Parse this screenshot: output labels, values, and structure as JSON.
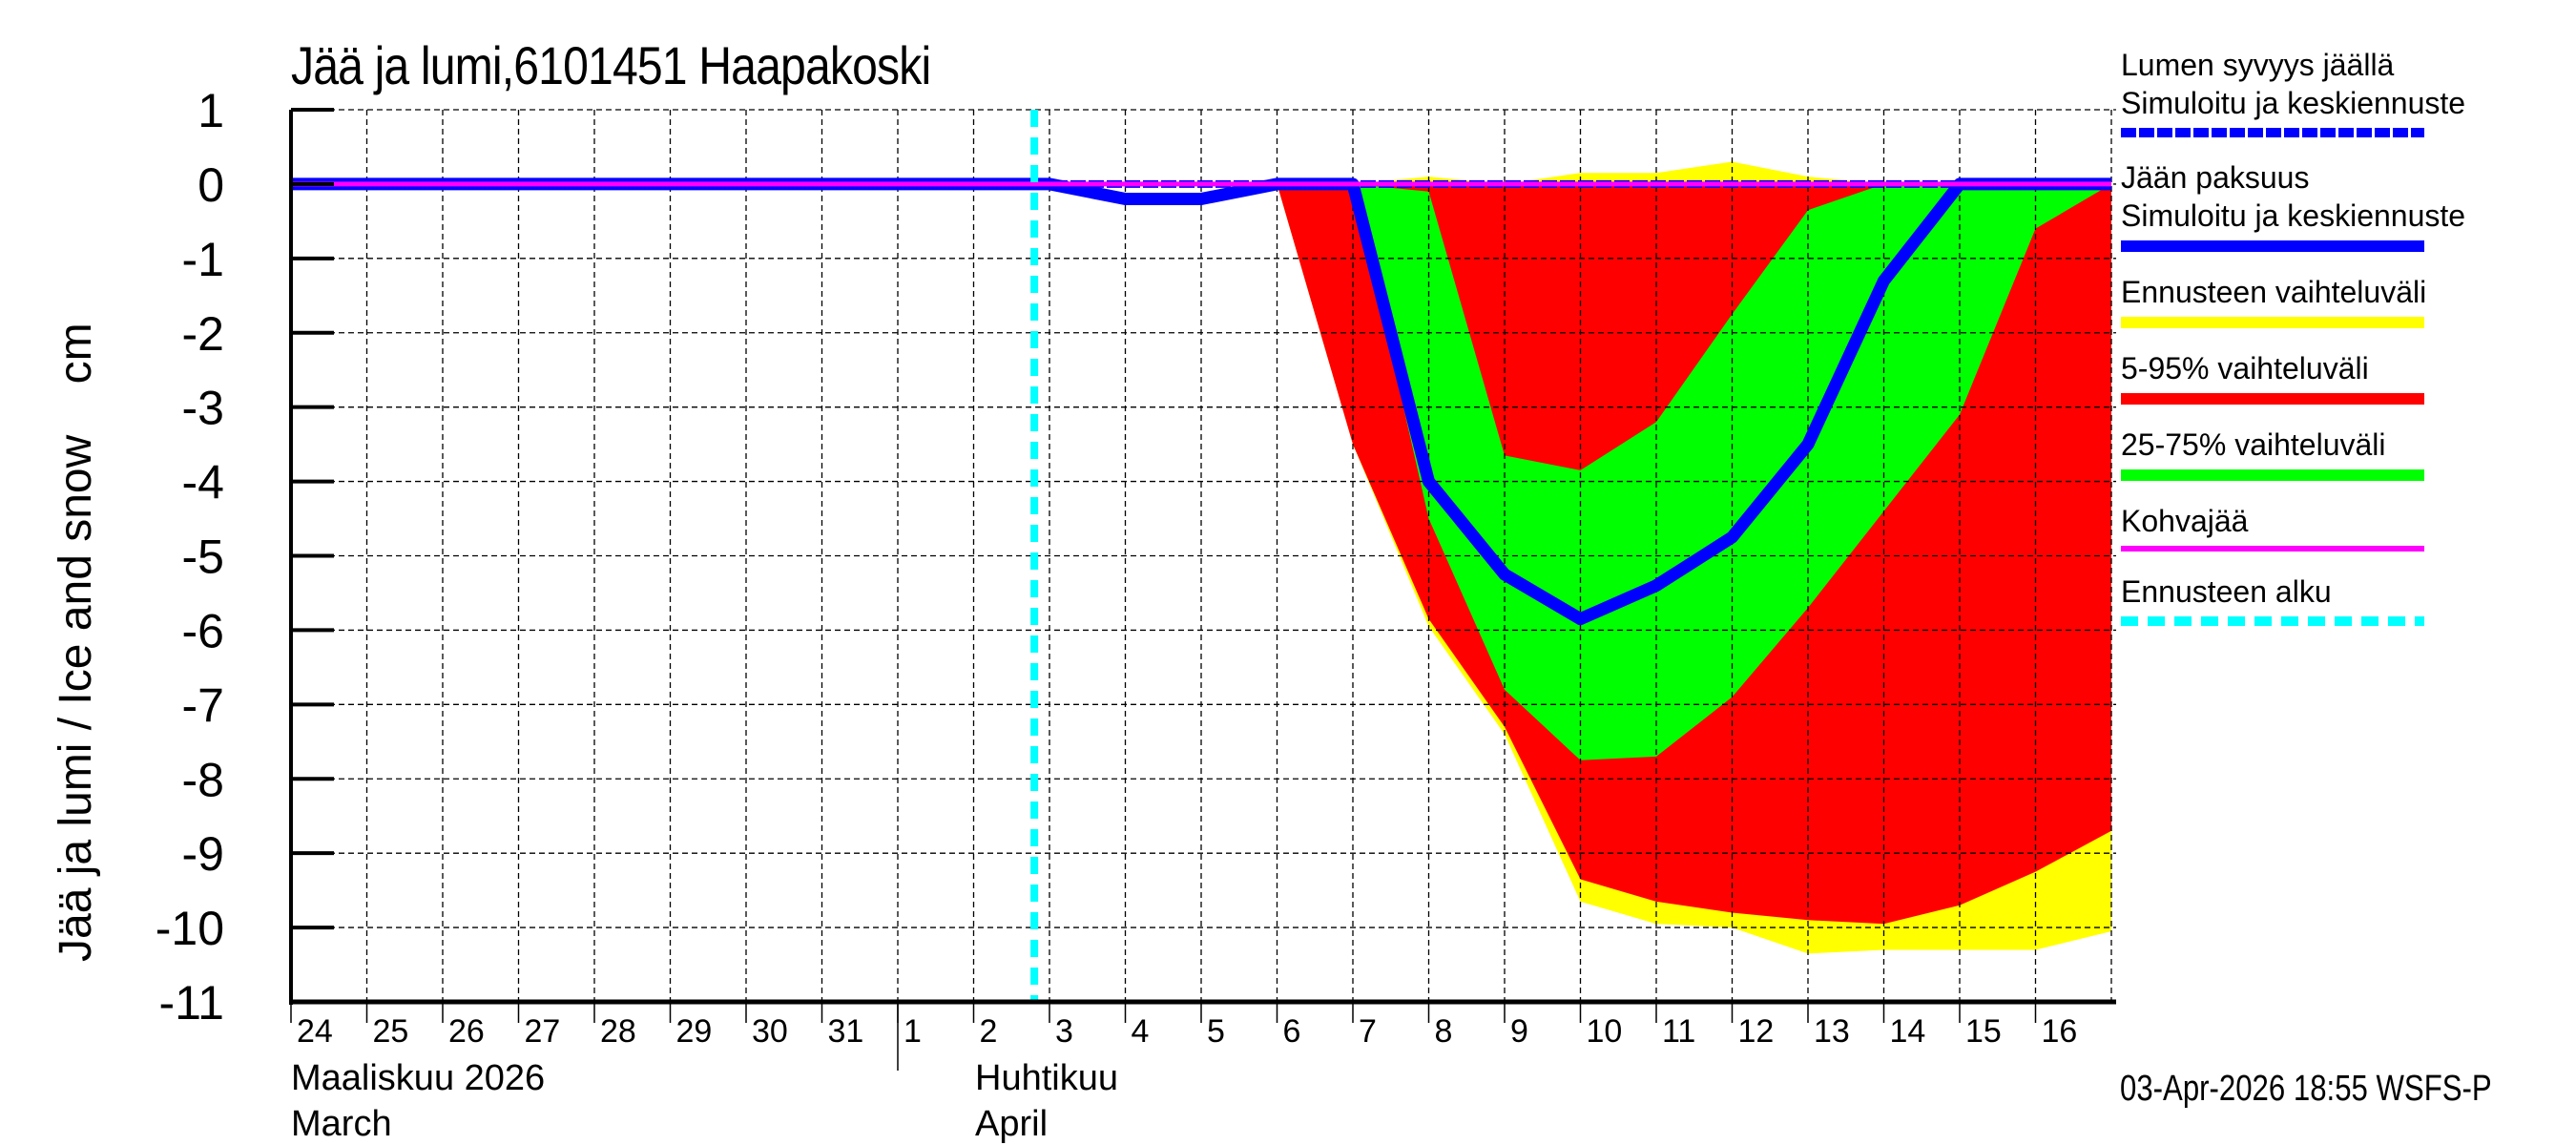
{
  "title": "Jää ja lumi,6101451 Haapakoski",
  "y_axis_label": "Jää ja lumi / Ice and snow    cm",
  "timestamp": "03-Apr-2026 18:55 WSFS-P",
  "x_axis": {
    "day_labels": [
      "24",
      "25",
      "26",
      "27",
      "28",
      "29",
      "30",
      "31",
      "1",
      "2",
      "3",
      "4",
      "5",
      "6",
      "7",
      "8",
      "9",
      "10",
      "11",
      "12",
      "13",
      "14",
      "15",
      "16"
    ],
    "month_labels": [
      {
        "fi": "Maaliskuu 2026",
        "en": "March"
      },
      {
        "fi": "Huhtikuu",
        "en": "April"
      }
    ]
  },
  "y_axis": {
    "ticks": [
      "1",
      "0",
      "-1",
      "-2",
      "-3",
      "-4",
      "-5",
      "-6",
      "-7",
      "-8",
      "-9",
      "-10",
      "-11"
    ]
  },
  "legend": {
    "items": [
      {
        "label": "Lumen syvyys jäällä",
        "sublabel": "Simuloitu ja keskiennuste",
        "color": "#0000ff",
        "style": "dotted"
      },
      {
        "label": "Jään paksuus",
        "sublabel": "Simuloitu ja keskiennuste",
        "color": "#0000ff",
        "style": "solid"
      },
      {
        "label": "Ennusteen vaihteluväli",
        "color": "#ffff00",
        "style": "band"
      },
      {
        "label": "5-95% vaihteluväli",
        "color": "#ff0000",
        "style": "band"
      },
      {
        "label": "25-75% vaihteluväli",
        "color": "#00ff00",
        "style": "band"
      },
      {
        "label": "Kohvajää",
        "color": "#ff00ff",
        "style": "thin"
      },
      {
        "label": "Ennusteen alku",
        "color": "#00ffff",
        "style": "dashed"
      }
    ]
  },
  "chart_data": {
    "type": "area",
    "title": "Jää ja lumi,6101451 Haapakoski",
    "xlabel": "Maaliskuu 2026 / March — Huhtikuu / April",
    "ylabel": "Jää ja lumi / Ice and snow cm",
    "ylim": [
      -11,
      1
    ],
    "x_start": "2026-03-24",
    "x_end": "2026-04-17",
    "grid": true,
    "forecast_start_x": 9.8,
    "categories": [
      "Mar 24",
      "Mar 25",
      "Mar 26",
      "Mar 27",
      "Mar 28",
      "Mar 29",
      "Mar 30",
      "Mar 31",
      "Apr 1",
      "Apr 2",
      "Apr 3",
      "Apr 4",
      "Apr 5",
      "Apr 6",
      "Apr 7",
      "Apr 8",
      "Apr 9",
      "Apr 10",
      "Apr 11",
      "Apr 12",
      "Apr 13",
      "Apr 14",
      "Apr 15",
      "Apr 16",
      "Apr 17"
    ],
    "series": [
      {
        "name": "Jään paksuus (Simuloitu ja keskiennuste)",
        "color": "#0000ff",
        "values": [
          0,
          0,
          0,
          0,
          0,
          0,
          0,
          0,
          0,
          0,
          0,
          -0.2,
          -0.2,
          0,
          0,
          -4.0,
          -5.25,
          -5.85,
          -5.4,
          -4.75,
          -3.5,
          -1.3,
          0,
          0,
          0
        ]
      },
      {
        "name": "Lumen syvyys jäällä (Simuloitu ja keskiennuste)",
        "color": "#0000ff",
        "values": [
          0,
          0,
          0,
          0,
          0,
          0,
          0,
          0,
          0,
          0,
          0,
          0,
          0,
          0,
          0,
          0,
          0,
          0,
          0,
          0,
          0,
          0,
          0,
          0,
          0
        ]
      },
      {
        "name": "Kohvajää",
        "color": "#ff00ff",
        "values": [
          0,
          0,
          0,
          0,
          0,
          0,
          0,
          0,
          0,
          0,
          0,
          0,
          0,
          0,
          0,
          0,
          0,
          0,
          0,
          0,
          0,
          0,
          0,
          0,
          0
        ]
      },
      {
        "name": "Ennusteen vaihteluväli (upper)",
        "color": "#ffff00",
        "values": [
          0,
          0,
          0,
          0,
          0,
          0,
          0,
          0,
          0,
          0,
          0,
          0,
          0,
          0,
          0,
          0.1,
          0,
          0.15,
          0.15,
          0.3,
          0.1,
          0,
          0,
          0,
          0
        ]
      },
      {
        "name": "Ennusteen vaihteluväli (lower)",
        "color": "#ffff00",
        "values": [
          0,
          0,
          0,
          0,
          0,
          0,
          0,
          0,
          0,
          0,
          0,
          0,
          0,
          0,
          -3.5,
          -5.95,
          -7.4,
          -9.65,
          -9.95,
          -10.0,
          -10.35,
          -10.3,
          -10.3,
          -10.3,
          -10.05
        ]
      },
      {
        "name": "5-95% vaihteluväli (upper)",
        "color": "#ff0000",
        "values": [
          0,
          0,
          0,
          0,
          0,
          0,
          0,
          0,
          0,
          0,
          0,
          0,
          0,
          0,
          0,
          0,
          0,
          0,
          0,
          0,
          0,
          0,
          0,
          0,
          0
        ]
      },
      {
        "name": "5-95% vaihteluväli (lower)",
        "color": "#ff0000",
        "values": [
          0,
          0,
          0,
          0,
          0,
          0,
          0,
          0,
          0,
          0,
          0,
          0,
          0,
          0,
          -3.5,
          -5.85,
          -7.3,
          -9.35,
          -9.65,
          -9.8,
          -9.9,
          -9.95,
          -9.7,
          -9.25,
          -8.7
        ]
      },
      {
        "name": "25-75% vaihteluväli (upper)",
        "color": "#00ff00",
        "values": [
          0,
          0,
          0,
          0,
          0,
          0,
          0,
          0,
          0,
          0,
          0,
          0,
          0,
          0,
          0,
          -0.1,
          -3.65,
          -3.85,
          -3.2,
          -1.75,
          -0.35,
          0,
          0,
          0,
          0
        ]
      },
      {
        "name": "25-75% vaihteluväli (lower)",
        "color": "#00ff00",
        "values": [
          0,
          0,
          0,
          0,
          0,
          0,
          0,
          0,
          0,
          0,
          0,
          0,
          0,
          0,
          0,
          -4.5,
          -6.8,
          -7.75,
          -7.7,
          -6.9,
          -5.7,
          -4.4,
          -3.1,
          -0.6,
          0
        ]
      }
    ]
  }
}
